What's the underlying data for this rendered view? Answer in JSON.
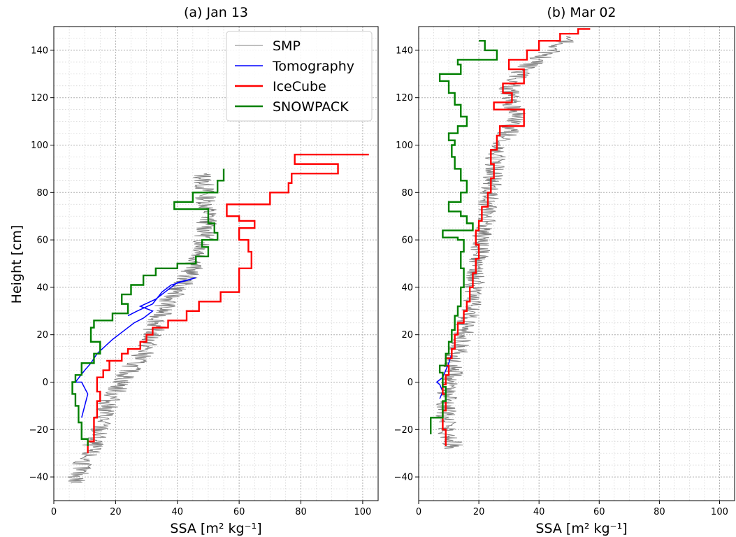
{
  "chart_data": [
    {
      "type": "line",
      "title": "(a) Jan 13",
      "xlabel": "SSA [m² kg⁻¹]",
      "ylabel": "Height [cm]",
      "xlim": [
        0,
        105
      ],
      "ylim": [
        -50,
        150
      ],
      "xticks": [
        0,
        20,
        40,
        60,
        80,
        100
      ],
      "yticks": [
        -40,
        -20,
        0,
        20,
        40,
        60,
        80,
        100,
        120,
        140
      ],
      "grid": true,
      "legend_position": "top-right",
      "series": [
        {
          "name": "SMP",
          "color": "#808080",
          "kind": "noisy",
          "points": [
            [
              48,
              88
            ],
            [
              49,
              80
            ],
            [
              50,
              70
            ],
            [
              49,
              62
            ],
            [
              48,
              55
            ],
            [
              45,
              48
            ],
            [
              42,
              42
            ],
            [
              38,
              36
            ],
            [
              35,
              30
            ],
            [
              33,
              24
            ],
            [
              31,
              18
            ],
            [
              29,
              12
            ],
            [
              25,
              6
            ],
            [
              22,
              0
            ],
            [
              18,
              -8
            ],
            [
              16,
              -15
            ],
            [
              14,
              -22
            ],
            [
              12,
              -28
            ],
            [
              10,
              -33
            ],
            [
              8,
              -38
            ],
            [
              7,
              -43
            ]
          ]
        },
        {
          "name": "Tomography",
          "color": "#0000ff",
          "kind": "line",
          "points": [
            [
              9,
              -15
            ],
            [
              10,
              -10
            ],
            [
              11,
              -5
            ],
            [
              9,
              0
            ],
            [
              7,
              0
            ],
            [
              10,
              5
            ],
            [
              12,
              8
            ],
            [
              14,
              12
            ],
            [
              19,
              18
            ],
            [
              23,
              22
            ],
            [
              26,
              25
            ],
            [
              29,
              27
            ],
            [
              32,
              30
            ],
            [
              28,
              32
            ],
            [
              33,
              35
            ],
            [
              36,
              38
            ],
            [
              40,
              42
            ],
            [
              46,
              44
            ],
            [
              38,
              41
            ],
            [
              35,
              38
            ],
            [
              32,
              33
            ],
            [
              27,
              30
            ],
            [
              24,
              28
            ]
          ]
        },
        {
          "name": "IceCube",
          "color": "#ff0000",
          "kind": "step",
          "points": [
            [
              11,
              -30
            ],
            [
              13,
              -25
            ],
            [
              14,
              -15
            ],
            [
              15,
              -8
            ],
            [
              14,
              -4
            ],
            [
              16,
              2
            ],
            [
              18,
              5
            ],
            [
              17,
              9
            ],
            [
              22,
              9
            ],
            [
              24,
              12
            ],
            [
              28,
              14
            ],
            [
              30,
              17
            ],
            [
              32,
              20
            ],
            [
              37,
              23
            ],
            [
              43,
              26
            ],
            [
              47,
              30
            ],
            [
              54,
              34
            ],
            [
              60,
              38
            ],
            [
              64,
              48
            ],
            [
              63,
              55
            ],
            [
              60,
              60
            ],
            [
              65,
              65
            ],
            [
              60,
              68
            ],
            [
              56,
              70
            ],
            [
              70,
              75
            ],
            [
              76,
              80
            ],
            [
              77,
              84
            ],
            [
              92,
              88
            ],
            [
              78,
              92
            ],
            [
              102,
              96
            ]
          ]
        },
        {
          "name": "SNOWPACK",
          "color": "#008000",
          "kind": "step",
          "points": [
            [
              11,
              -27
            ],
            [
              9,
              -24
            ],
            [
              8,
              -17
            ],
            [
              7,
              -10
            ],
            [
              6,
              -5
            ],
            [
              7,
              0
            ],
            [
              9,
              3
            ],
            [
              13,
              8
            ],
            [
              15,
              12
            ],
            [
              12,
              17
            ],
            [
              13,
              23
            ],
            [
              19,
              26
            ],
            [
              24,
              29
            ],
            [
              22,
              33
            ],
            [
              25,
              37
            ],
            [
              29,
              41
            ],
            [
              33,
              45
            ],
            [
              40,
              48
            ],
            [
              46,
              50
            ],
            [
              50,
              53
            ],
            [
              48,
              57
            ],
            [
              53,
              60
            ],
            [
              52,
              63
            ],
            [
              50,
              67
            ],
            [
              39,
              73
            ],
            [
              45,
              76
            ],
            [
              53,
              80
            ],
            [
              55,
              85
            ],
            [
              55,
              90
            ]
          ]
        }
      ]
    },
    {
      "type": "line",
      "title": "(b) Mar 02",
      "xlabel": "SSA [m² kg⁻¹]",
      "ylabel": "",
      "xlim": [
        0,
        105
      ],
      "ylim": [
        -50,
        150
      ],
      "xticks": [
        0,
        20,
        40,
        60,
        80,
        100
      ],
      "yticks": [
        -40,
        -20,
        0,
        20,
        40,
        60,
        80,
        100,
        120,
        140
      ],
      "grid": true,
      "series": [
        {
          "name": "SMP",
          "color": "#808080",
          "kind": "noisy",
          "points": [
            [
              12,
              -28
            ],
            [
              10,
              -22
            ],
            [
              9,
              -15
            ],
            [
              9,
              -8
            ],
            [
              10,
              -2
            ],
            [
              11,
              3
            ],
            [
              12,
              8
            ],
            [
              13,
              13
            ],
            [
              14,
              18
            ],
            [
              16,
              25
            ],
            [
              17,
              30
            ],
            [
              18,
              38
            ],
            [
              19,
              45
            ],
            [
              20,
              52
            ],
            [
              21,
              60
            ],
            [
              22,
              68
            ],
            [
              23,
              75
            ],
            [
              24,
              82
            ],
            [
              25,
              90
            ],
            [
              26,
              98
            ],
            [
              30,
              106
            ],
            [
              33,
              112
            ],
            [
              31,
              118
            ],
            [
              30,
              124
            ],
            [
              32,
              128
            ],
            [
              36,
              133
            ],
            [
              42,
              138
            ],
            [
              48,
              143
            ],
            [
              50,
              146
            ]
          ]
        },
        {
          "name": "Tomography",
          "color": "#0000ff",
          "kind": "line",
          "points": [
            [
              7,
              -7
            ],
            [
              8,
              -4
            ],
            [
              7,
              -1
            ],
            [
              6,
              0
            ],
            [
              8,
              2
            ],
            [
              9,
              5
            ],
            [
              10,
              8
            ],
            [
              11,
              12
            ]
          ]
        },
        {
          "name": "IceCube",
          "color": "#ff0000",
          "kind": "step",
          "points": [
            [
              9,
              -27
            ],
            [
              8,
              -20
            ],
            [
              9,
              -12
            ],
            [
              8,
              -5
            ],
            [
              9,
              -1
            ],
            [
              10,
              3
            ],
            [
              9,
              7
            ],
            [
              11,
              10
            ],
            [
              12,
              14
            ],
            [
              13,
              20
            ],
            [
              15,
              25
            ],
            [
              16,
              30
            ],
            [
              17,
              34
            ],
            [
              18,
              40
            ],
            [
              19,
              46
            ],
            [
              20,
              52
            ],
            [
              19,
              58
            ],
            [
              20,
              64
            ],
            [
              21,
              68
            ],
            [
              23,
              74
            ],
            [
              24,
              80
            ],
            [
              25,
              86
            ],
            [
              24,
              92
            ],
            [
              26,
              98
            ],
            [
              27,
              104
            ],
            [
              35,
              108
            ],
            [
              25,
              115
            ],
            [
              31,
              118
            ],
            [
              28,
              122
            ],
            [
              35,
              126
            ],
            [
              30,
              132
            ],
            [
              36,
              136
            ],
            [
              40,
              140
            ],
            [
              47,
              144
            ],
            [
              53,
              147
            ],
            [
              57,
              149
            ]
          ]
        },
        {
          "name": "SNOWPACK",
          "color": "#008000",
          "kind": "step",
          "points": [
            [
              4,
              -22
            ],
            [
              8,
              -15
            ],
            [
              9,
              -8
            ],
            [
              8,
              -2
            ],
            [
              7,
              4
            ],
            [
              9,
              7
            ],
            [
              10,
              12
            ],
            [
              11,
              17
            ],
            [
              12,
              22
            ],
            [
              13,
              28
            ],
            [
              14,
              32
            ],
            [
              15,
              40
            ],
            [
              14,
              48
            ],
            [
              15,
              55
            ],
            [
              13,
              60
            ],
            [
              8,
              61
            ],
            [
              18,
              64
            ],
            [
              16,
              67
            ],
            [
              14,
              70
            ],
            [
              10,
              72
            ],
            [
              14,
              76
            ],
            [
              16,
              80
            ],
            [
              14,
              85
            ],
            [
              12,
              90
            ],
            [
              11,
              95
            ],
            [
              12,
              100
            ],
            [
              10,
              102
            ],
            [
              13,
              105
            ],
            [
              16,
              108
            ],
            [
              14,
              112
            ],
            [
              12,
              117
            ],
            [
              10,
              122
            ],
            [
              7,
              127
            ],
            [
              14,
              130
            ],
            [
              13,
              134
            ],
            [
              26,
              136
            ],
            [
              22,
              140
            ],
            [
              20,
              144
            ]
          ]
        }
      ]
    }
  ]
}
